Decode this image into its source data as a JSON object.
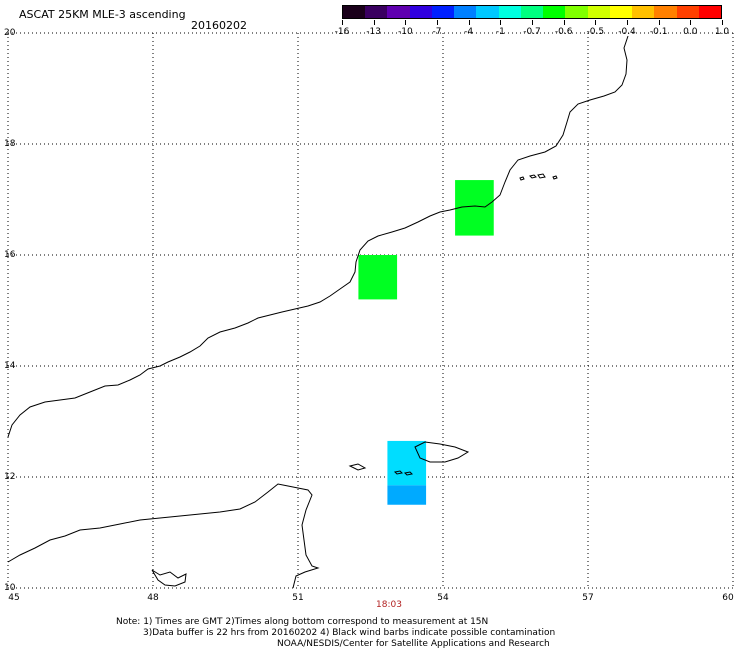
{
  "header": {
    "title": "ASCAT 25KM MLE-3 ascending",
    "date": "20160202"
  },
  "colorbar": {
    "labels": [
      "-16",
      "-13",
      "-10",
      "-7",
      "-4",
      "-1",
      "-0.7",
      "-0.6",
      "-0.5",
      "-0.4",
      "-0.1",
      "0.0",
      "1.0"
    ],
    "colors": [
      "#1a001a",
      "#3a0060",
      "#6000b0",
      "#3000e0",
      "#0020ff",
      "#0080ff",
      "#00c8ff",
      "#00ffe0",
      "#00ff80",
      "#00ff00",
      "#80ff00",
      "#d0ff00",
      "#ffff00",
      "#ffc000",
      "#ff8000",
      "#ff4000",
      "#ff0000"
    ]
  },
  "axes": {
    "lat_labels": [
      "20",
      "18",
      "16",
      "14",
      "12",
      "10"
    ],
    "lon_labels": [
      "45",
      "48",
      "51",
      "54",
      "57",
      "60"
    ],
    "time_label": "18:03"
  },
  "swaths": [
    {
      "lon_min": 54.25,
      "lon_max": 55.05,
      "lat_min": 16.35,
      "lat_max": 17.35,
      "color": "#00ff22"
    },
    {
      "lon_min": 52.25,
      "lon_max": 53.05,
      "lat_min": 15.2,
      "lat_max": 16.0,
      "color": "#00ff22"
    },
    {
      "lon_min": 52.85,
      "lon_max": 53.65,
      "lat_min": 11.85,
      "lat_max": 12.65,
      "color": "#00ddff"
    },
    {
      "lon_min": 52.85,
      "lon_max": 53.65,
      "lat_min": 11.5,
      "lat_max": 11.85,
      "color": "#00aaff"
    }
  ],
  "footer": {
    "note_line1": "Note: 1) Times are GMT 2)Times along bottom correspond to measurement at 15N",
    "note_line2": "3)Data buffer is 22 hrs from 20160202 4) Black wind barbs indicate possible contamination",
    "credit": "NOAA/NESDIS/Center for Satellite Applications and Research"
  }
}
